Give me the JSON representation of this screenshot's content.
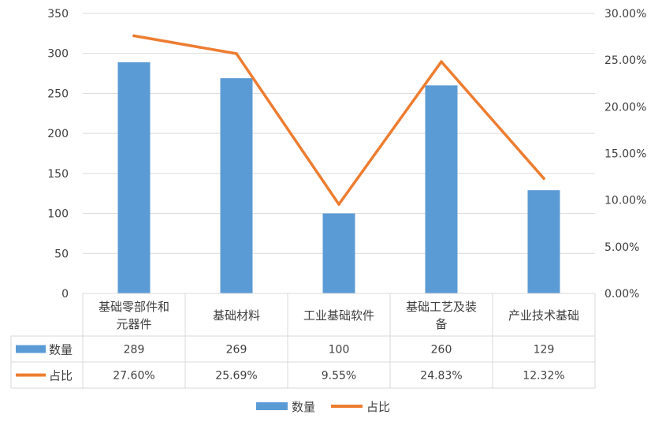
{
  "chart_data": {
    "type": "bar",
    "categories": [
      [
        "基础零部件和",
        "元器件"
      ],
      [
        "基础材料"
      ],
      [
        "工业基础软件"
      ],
      [
        "基础工艺及装",
        "备"
      ],
      [
        "产业技术基础"
      ]
    ],
    "series": [
      {
        "name": "数量",
        "type": "bar",
        "axis": "left",
        "values": [
          289,
          269,
          100,
          260,
          129
        ],
        "labels": [
          "289",
          "269",
          "100",
          "260",
          "129"
        ],
        "color": "#5b9bd5"
      },
      {
        "name": "占比",
        "type": "line",
        "axis": "right",
        "values": [
          27.6,
          25.69,
          9.55,
          24.83,
          12.32
        ],
        "labels": [
          "27.60%",
          "25.69%",
          "9.55%",
          "24.83%",
          "12.32%"
        ],
        "color": "#ed7d31"
      }
    ],
    "y_left": {
      "min": 0,
      "max": 350,
      "ticks": [
        "0",
        "50",
        "100",
        "150",
        "200",
        "250",
        "300",
        "350"
      ]
    },
    "y_right": {
      "min": 0,
      "max": 30,
      "ticks": [
        "0.00%",
        "5.00%",
        "10.00%",
        "15.00%",
        "20.00%",
        "25.00%",
        "30.00%"
      ]
    },
    "grid": true,
    "data_table": true,
    "legend_position": "bottom",
    "title": "",
    "xlabel": "",
    "ylabel": ""
  }
}
